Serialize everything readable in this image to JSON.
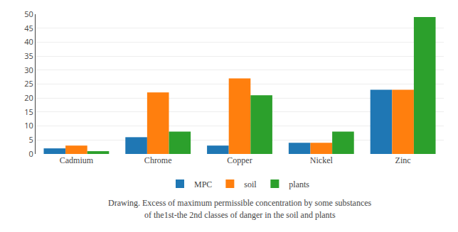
{
  "chart_data": {
    "type": "bar",
    "categories": [
      "Cadmium",
      "Chrome",
      "Copper",
      "Nickel",
      "Zinc"
    ],
    "series": [
      {
        "name": "MPC",
        "values": [
          2,
          6,
          3,
          4,
          23
        ]
      },
      {
        "name": "soil",
        "values": [
          3,
          22,
          27,
          4,
          23
        ]
      },
      {
        "name": "plants",
        "values": [
          1,
          8,
          21,
          8,
          49
        ]
      }
    ],
    "ylim": [
      0,
      50
    ],
    "yticks": [
      0,
      5,
      10,
      15,
      20,
      25,
      30,
      35,
      40,
      45,
      50
    ],
    "grid": true,
    "legend": "bottom",
    "annotations": [
      "Drawing. Excess of maximum permissible concentration by some substances",
      "of the1st-the 2nd classes of danger in the soil and plants"
    ]
  }
}
